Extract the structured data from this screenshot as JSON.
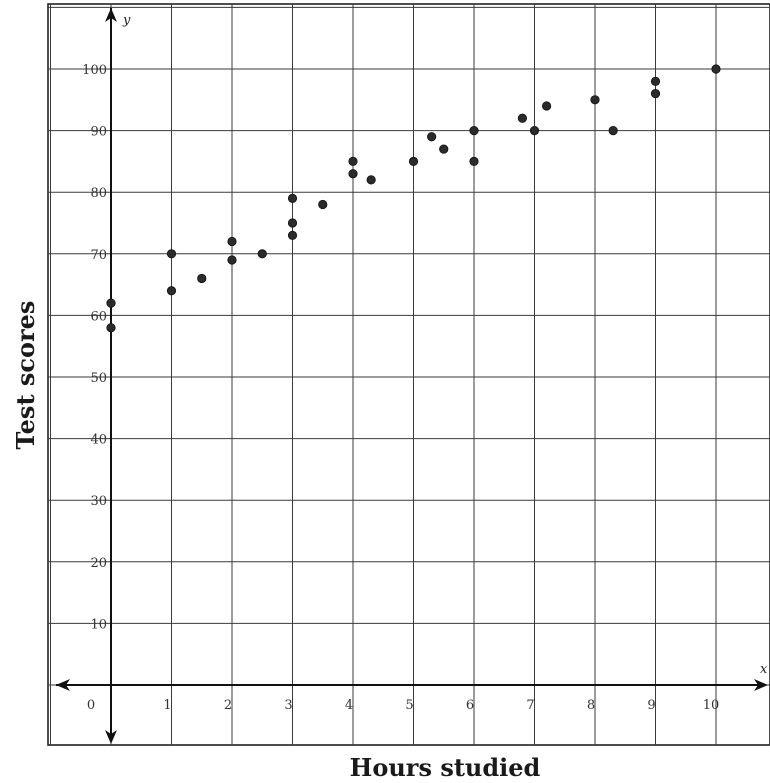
{
  "chart_data": {
    "type": "scatter",
    "title": "",
    "xlabel": "Hours studied",
    "ylabel": "Test scores",
    "x_axis_symbol": "x",
    "y_axis_symbol": "y",
    "xlim": [
      -1,
      10.5
    ],
    "ylim": [
      -10,
      110
    ],
    "grid": true,
    "x_ticks": [
      0,
      1,
      2,
      3,
      4,
      5,
      6,
      7,
      8,
      9,
      10
    ],
    "y_ticks": [
      10,
      20,
      30,
      40,
      50,
      60,
      70,
      80,
      90,
      100
    ],
    "x_tick_labels": [
      "0",
      "1",
      "2",
      "3",
      "4",
      "5",
      "6",
      "7",
      "8",
      "9",
      "10"
    ],
    "y_tick_labels": [
      "10",
      "20",
      "30",
      "40",
      "50",
      "60",
      "70",
      "80",
      "90",
      "100"
    ],
    "points": [
      {
        "x": 0,
        "y": 62
      },
      {
        "x": 0,
        "y": 58
      },
      {
        "x": 1,
        "y": 70
      },
      {
        "x": 1,
        "y": 64
      },
      {
        "x": 1.5,
        "y": 66
      },
      {
        "x": 2,
        "y": 72
      },
      {
        "x": 2,
        "y": 69
      },
      {
        "x": 2.5,
        "y": 70
      },
      {
        "x": 3,
        "y": 79
      },
      {
        "x": 3,
        "y": 75
      },
      {
        "x": 3,
        "y": 73
      },
      {
        "x": 3.5,
        "y": 78
      },
      {
        "x": 4,
        "y": 85
      },
      {
        "x": 4,
        "y": 83
      },
      {
        "x": 4.3,
        "y": 82
      },
      {
        "x": 5,
        "y": 85
      },
      {
        "x": 5.3,
        "y": 89
      },
      {
        "x": 5.5,
        "y": 87
      },
      {
        "x": 6,
        "y": 90
      },
      {
        "x": 6,
        "y": 85
      },
      {
        "x": 6.8,
        "y": 92
      },
      {
        "x": 7,
        "y": 90
      },
      {
        "x": 7.2,
        "y": 94
      },
      {
        "x": 8,
        "y": 95
      },
      {
        "x": 8.3,
        "y": 90
      },
      {
        "x": 9,
        "y": 98
      },
      {
        "x": 9,
        "y": 96
      },
      {
        "x": 10,
        "y": 100
      }
    ]
  }
}
